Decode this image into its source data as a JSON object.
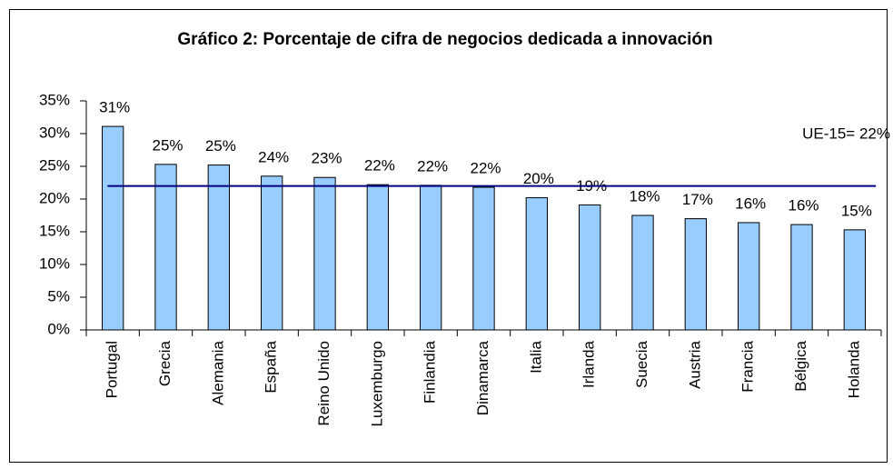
{
  "chart_data": {
    "type": "bar",
    "title": "Gráfico 2: Porcentaje de cifra de negocios dedicada a innovación",
    "categories": [
      "Portugal",
      "Grecia",
      "Alemania",
      "España",
      "Reino Unido",
      "Luxemburgo",
      "Finlandia",
      "Dinamarca",
      "Italia",
      "Irlanda",
      "Suecia",
      "Austria",
      "Francia",
      "Bélgica",
      "Holanda"
    ],
    "values": [
      31.1,
      25.3,
      25.2,
      23.5,
      23.3,
      22.2,
      22.1,
      21.8,
      20.2,
      19.1,
      17.5,
      17.0,
      16.4,
      16.1,
      15.3
    ],
    "value_labels": [
      "31%",
      "25%",
      "25%",
      "24%",
      "23%",
      "22%",
      "22%",
      "22%",
      "20%",
      "19%",
      "18%",
      "17%",
      "16%",
      "16%",
      "15%"
    ],
    "color": "#99ccff",
    "ylim": [
      0,
      35
    ],
    "yticks": [
      {
        "value": 0,
        "label": "0%"
      },
      {
        "value": 5,
        "label": "5%"
      },
      {
        "value": 10,
        "label": "10%"
      },
      {
        "value": 15,
        "label": "15%"
      },
      {
        "value": 20,
        "label": "20%"
      },
      {
        "value": 25,
        "label": "25%"
      },
      {
        "value": 30,
        "label": "30%"
      },
      {
        "value": 35,
        "label": "35%"
      }
    ],
    "reference_line": {
      "value": 22,
      "label": "UE-15= 22%",
      "color": "#000080"
    }
  }
}
